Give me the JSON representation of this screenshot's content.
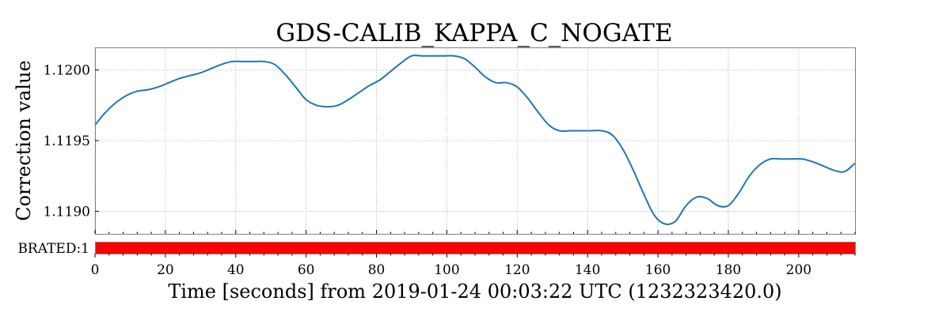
{
  "chart_data": {
    "type": "line",
    "title": "GDS-CALIB_KAPPA_C_NOGATE",
    "xlabel": "Time [seconds] from 2019-01-24 00:03:22 UTC (1232323420.0)",
    "ylabel": "Correction value",
    "xlim": [
      0,
      216
    ],
    "ylim": [
      1.11884,
      1.12016
    ],
    "x_ticks": [
      0,
      20,
      40,
      60,
      80,
      100,
      120,
      140,
      160,
      180,
      200
    ],
    "x_tick_labels": [
      "0",
      "20",
      "40",
      "60",
      "80",
      "100",
      "120",
      "140",
      "160",
      "180",
      "200"
    ],
    "y_ticks": [
      1.119,
      1.1195,
      1.12
    ],
    "y_tick_labels": [
      "1.1190",
      "1.1195",
      "1.1200"
    ],
    "grid": true,
    "series": [
      {
        "color": "#1f77b4",
        "x": [
          0,
          3,
          6,
          9,
          12,
          15,
          18,
          21,
          24,
          27,
          30,
          33,
          36,
          39,
          42,
          45,
          48,
          51,
          54,
          57,
          60,
          63,
          66,
          69,
          72,
          75,
          78,
          81,
          84,
          87,
          90,
          93,
          96,
          99,
          102,
          105,
          108,
          111,
          114,
          117,
          120,
          123,
          126,
          129,
          132,
          135,
          138,
          141,
          144,
          147,
          150,
          153,
          156,
          159,
          162,
          165,
          168,
          171,
          174,
          177,
          180,
          183,
          186,
          189,
          192,
          195,
          198,
          201,
          204,
          207,
          210,
          213,
          216
        ],
        "values": [
          1.11961,
          1.1197,
          1.11977,
          1.11982,
          1.11985,
          1.11986,
          1.11988,
          1.11991,
          1.11994,
          1.11996,
          1.11998,
          1.12001,
          1.12004,
          1.12006,
          1.12006,
          1.12006,
          1.12006,
          1.12004,
          1.11997,
          1.11988,
          1.11979,
          1.11975,
          1.11974,
          1.11975,
          1.11979,
          1.11984,
          1.11989,
          1.11993,
          1.11999,
          1.12005,
          1.1201,
          1.1201,
          1.1201,
          1.1201,
          1.1201,
          1.12008,
          1.12002,
          1.11995,
          1.11991,
          1.11991,
          1.11988,
          1.1198,
          1.1197,
          1.11961,
          1.11957,
          1.11957,
          1.11957,
          1.11957,
          1.11957,
          1.11954,
          1.11944,
          1.11929,
          1.11912,
          1.11897,
          1.11891,
          1.11893,
          1.11904,
          1.1191,
          1.11909,
          1.11904,
          1.11904,
          1.11913,
          1.11925,
          1.11933,
          1.11937,
          1.11937,
          1.11937,
          1.11937,
          1.11935,
          1.11932,
          1.11929,
          1.11928,
          1.11934
        ]
      }
    ],
    "segment_bar": {
      "label": "BRATED:1",
      "color": "#ff0000",
      "segments": [
        [
          0,
          216
        ]
      ]
    }
  }
}
